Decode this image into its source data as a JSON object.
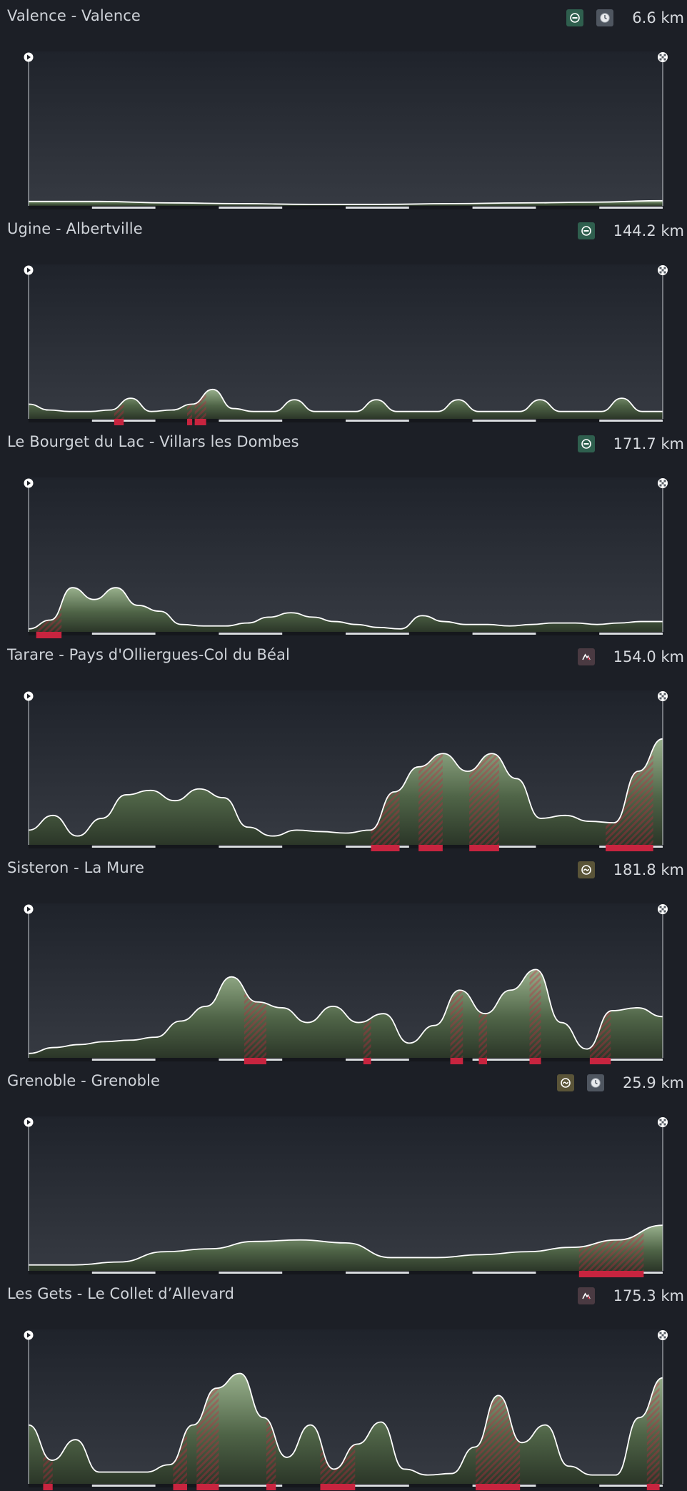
{
  "colors": {
    "background": "#1c1f26",
    "profile_fill_light": "#98b08c",
    "profile_fill_dark": "#2b3628",
    "climb_red": "#c8243f",
    "profile_line": "#ffffff"
  },
  "stages": [
    {
      "title": "Valence - Valence",
      "distance": "6.6 km",
      "badges": [
        {
          "type": "flat",
          "icon": "flat-stage-icon"
        },
        {
          "type": "tt",
          "icon": "clock-icon"
        }
      ],
      "profile": [
        0.03,
        0.03,
        0.02,
        0.015,
        0.01,
        0.01,
        0.015,
        0.02,
        0.025,
        0.035
      ],
      "climbs": [],
      "markers": {
        "start": "play-icon",
        "finish": "checkered-flag-icon"
      }
    },
    {
      "title": "Ugine - Albertville",
      "distance": "144.2 km",
      "badges": [
        {
          "type": "flat",
          "icon": "flat-stage-icon"
        }
      ],
      "profile": [
        0.1,
        0.06,
        0.05,
        0.05,
        0.06,
        0.14,
        0.05,
        0.06,
        0.1,
        0.2,
        0.07,
        0.05,
        0.05,
        0.13,
        0.05,
        0.05,
        0.05,
        0.13,
        0.05,
        0.05,
        0.05,
        0.13,
        0.05,
        0.05,
        0.05,
        0.13,
        0.05,
        0.05,
        0.05,
        0.14,
        0.05,
        0.05
      ],
      "climbs": [
        [
          0.135,
          0.15
        ],
        [
          0.25,
          0.258
        ],
        [
          0.262,
          0.28
        ]
      ],
      "markers": {
        "start": "play-icon",
        "finish": "checkered-flag-icon"
      }
    },
    {
      "title": "Le Bourget du Lac - Villars les Dombes",
      "distance": "171.7 km",
      "badges": [
        {
          "type": "flat",
          "icon": "flat-stage-icon"
        }
      ],
      "profile": [
        0.02,
        0.08,
        0.3,
        0.22,
        0.3,
        0.18,
        0.14,
        0.05,
        0.04,
        0.04,
        0.06,
        0.1,
        0.13,
        0.1,
        0.07,
        0.05,
        0.03,
        0.02,
        0.11,
        0.07,
        0.05,
        0.05,
        0.04,
        0.05,
        0.06,
        0.06,
        0.05,
        0.06,
        0.07,
        0.07
      ],
      "climbs": [
        [
          0.012,
          0.052
        ]
      ],
      "markers": {
        "start": "play-icon",
        "finish": "checkered-flag-icon"
      }
    },
    {
      "title": "Tarare - Pays d'Olliergues-Col du Béal",
      "distance": "154.0 km",
      "badges": [
        {
          "type": "mountain",
          "icon": "mountain-stage-icon"
        }
      ],
      "profile": [
        0.1,
        0.2,
        0.06,
        0.18,
        0.34,
        0.37,
        0.3,
        0.38,
        0.32,
        0.12,
        0.06,
        0.1,
        0.09,
        0.08,
        0.1,
        0.36,
        0.53,
        0.62,
        0.5,
        0.62,
        0.45,
        0.18,
        0.2,
        0.16,
        0.15,
        0.5,
        0.72
      ],
      "climbs": [
        [
          0.54,
          0.585
        ],
        [
          0.615,
          0.653
        ],
        [
          0.695,
          0.742
        ],
        [
          0.91,
          0.985
        ]
      ],
      "markers": {
        "start": "play-icon",
        "finish": "checkered-flag-icon"
      }
    },
    {
      "title": "Sisteron - La Mure",
      "distance": "181.8 km",
      "badges": [
        {
          "type": "hilly",
          "icon": "hilly-stage-icon"
        }
      ],
      "profile": [
        0.03,
        0.07,
        0.09,
        0.11,
        0.12,
        0.14,
        0.25,
        0.35,
        0.55,
        0.38,
        0.34,
        0.24,
        0.35,
        0.24,
        0.3,
        0.1,
        0.22,
        0.46,
        0.3,
        0.46,
        0.6,
        0.24,
        0.06,
        0.32,
        0.34,
        0.28
      ],
      "climbs": [
        [
          0.34,
          0.375
        ],
        [
          0.528,
          0.54
        ],
        [
          0.665,
          0.685
        ],
        [
          0.71,
          0.723
        ],
        [
          0.79,
          0.808
        ],
        [
          0.885,
          0.918
        ]
      ],
      "markers": {
        "start": "play-icon",
        "finish": "checkered-flag-icon"
      }
    },
    {
      "title": "Grenoble - Grenoble",
      "distance": "25.9 km",
      "badges": [
        {
          "type": "hilly",
          "icon": "hilly-stage-icon"
        },
        {
          "type": "tt",
          "icon": "clock-icon"
        }
      ],
      "profile": [
        0.04,
        0.04,
        0.06,
        0.13,
        0.15,
        0.2,
        0.21,
        0.19,
        0.09,
        0.09,
        0.11,
        0.13,
        0.16,
        0.21,
        0.31
      ],
      "climbs": [
        [
          0.868,
          0.97
        ]
      ],
      "markers": {
        "start": "play-icon",
        "finish": "checkered-flag-icon"
      }
    },
    {
      "title": "Les Gets - Le Collet d’Allevard",
      "distance": "175.3 km",
      "badges": [
        {
          "type": "mountain",
          "icon": "mountain-stage-icon"
        }
      ],
      "profile": [
        0.4,
        0.16,
        0.3,
        0.08,
        0.08,
        0.08,
        0.13,
        0.4,
        0.65,
        0.75,
        0.45,
        0.18,
        0.4,
        0.1,
        0.27,
        0.42,
        0.1,
        0.06,
        0.07,
        0.25,
        0.6,
        0.28,
        0.4,
        0.12,
        0.06,
        0.06,
        0.45,
        0.72
      ],
      "climbs": [
        [
          0.023,
          0.038
        ],
        [
          0.228,
          0.25
        ],
        [
          0.265,
          0.3
        ],
        [
          0.375,
          0.39
        ],
        [
          0.46,
          0.515
        ],
        [
          0.705,
          0.775
        ],
        [
          0.975,
          0.995
        ]
      ],
      "markers": {
        "start": "play-icon",
        "finish": "checkered-flag-icon"
      }
    }
  ]
}
